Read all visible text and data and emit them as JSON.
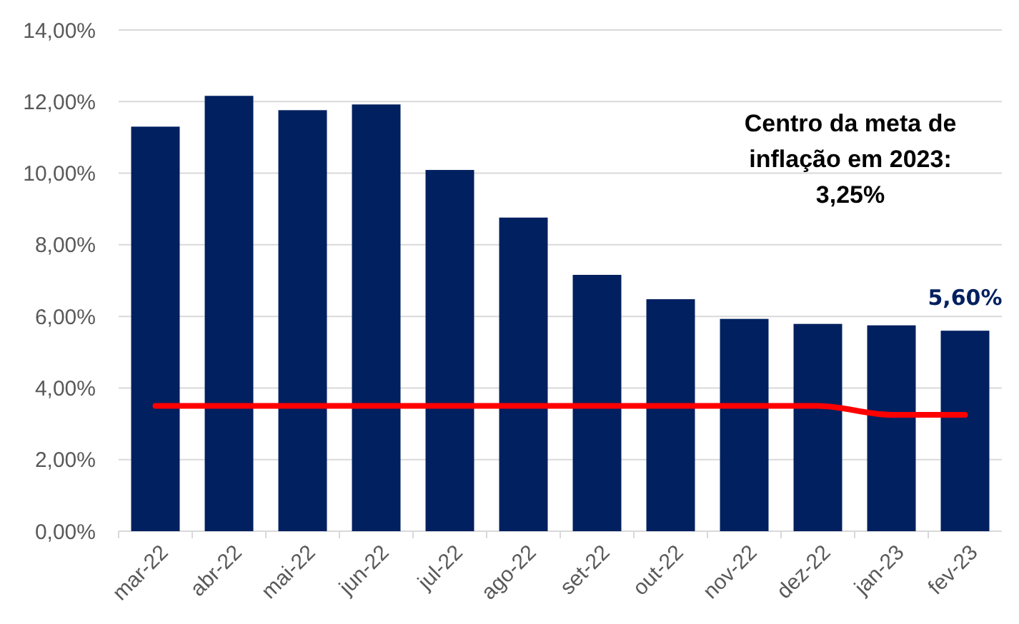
{
  "chart_data": {
    "type": "bar",
    "categories": [
      "mar-22",
      "abr-22",
      "mai-22",
      "jun-22",
      "jul-22",
      "ago-22",
      "set-22",
      "out-22",
      "nov-22",
      "dez-22",
      "jan-23",
      "fev-23"
    ],
    "series": [
      {
        "color": "#002060",
        "values": [
          11.3,
          12.16,
          11.76,
          11.92,
          10.09,
          8.76,
          7.16,
          6.48,
          5.93,
          5.79,
          5.75,
          5.6
        ],
        "value_labels": [
          null,
          null,
          null,
          null,
          null,
          null,
          null,
          null,
          null,
          null,
          null,
          "5,60%"
        ]
      },
      {
        "type": "line",
        "color": "#ff0000",
        "values": [
          3.5,
          3.5,
          3.5,
          3.5,
          3.5,
          3.5,
          3.5,
          3.5,
          3.5,
          3.5,
          3.25,
          3.25
        ]
      }
    ],
    "ylim": [
      0,
      14
    ],
    "yticks": [
      {
        "value": 0,
        "label": "0,00%"
      },
      {
        "value": 2,
        "label": "2,00%"
      },
      {
        "value": 4,
        "label": "4,00%"
      },
      {
        "value": 6,
        "label": "6,00%"
      },
      {
        "value": 8,
        "label": "8,00%"
      },
      {
        "value": 10,
        "label": "10,00%"
      },
      {
        "value": 12,
        "label": "12,00%"
      },
      {
        "value": 14,
        "label": "14,00%"
      }
    ],
    "grid": "y",
    "marker": "none",
    "line_style": "solid",
    "annotations": [
      "Centro da meta de\ninflação em 2023:\n3,25%"
    ]
  }
}
